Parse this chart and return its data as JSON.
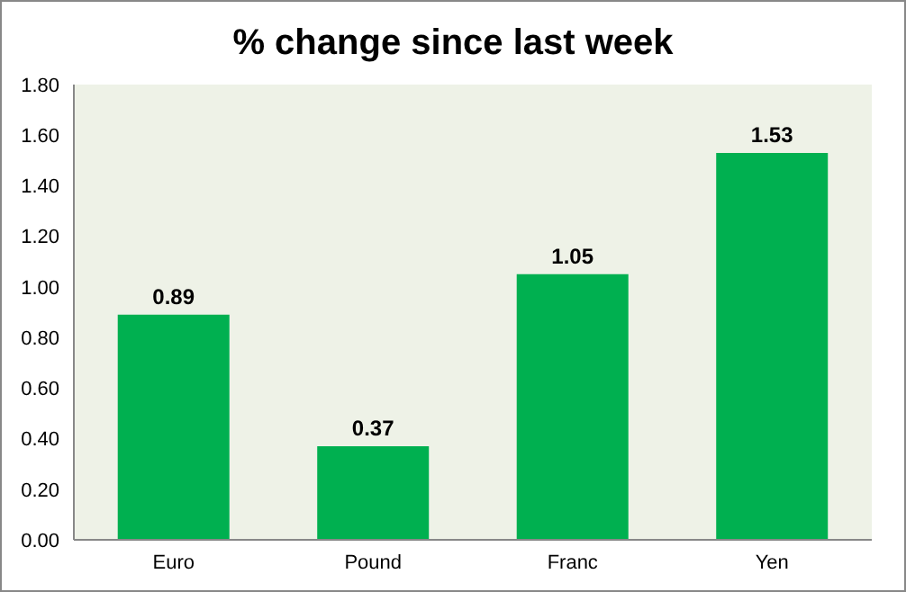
{
  "chart_data": {
    "type": "bar",
    "title": "% change since last week",
    "categories": [
      "Euro",
      "Pound",
      "Franc",
      "Yen"
    ],
    "values": [
      0.89,
      0.37,
      1.05,
      1.53
    ],
    "color": "#00b050",
    "ylim": [
      0,
      1.8
    ],
    "yticks": [
      {
        "value": 0,
        "label": "0.00"
      },
      {
        "value": 0.2,
        "label": "0.20"
      },
      {
        "value": 0.4,
        "label": "0.40"
      },
      {
        "value": 0.6,
        "label": "0.60"
      },
      {
        "value": 0.8,
        "label": "0.80"
      },
      {
        "value": 1,
        "label": "1.00"
      },
      {
        "value": 1.2,
        "label": "1.20"
      },
      {
        "value": 1.4,
        "label": "1.40"
      },
      {
        "value": 1.6,
        "label": "1.60"
      },
      {
        "value": 1.8,
        "label": "1.80"
      }
    ],
    "value_labels": [
      "0.89",
      "0.37",
      "1.05",
      "1.53"
    ],
    "grid": false,
    "legend": false
  }
}
